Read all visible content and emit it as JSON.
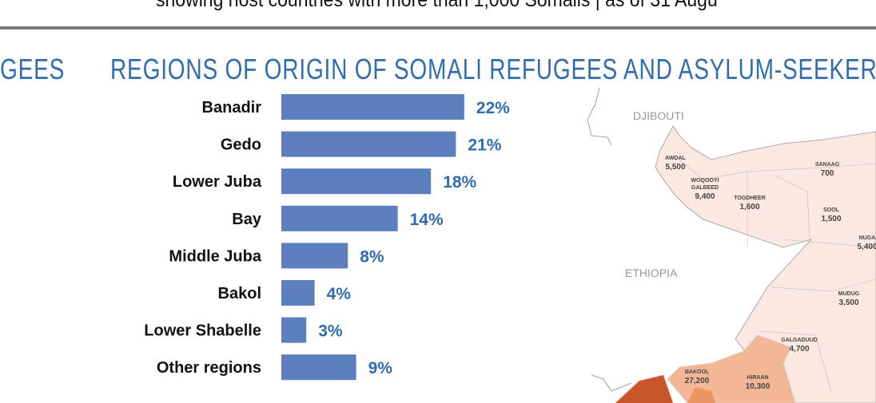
{
  "header": {
    "subtitle": "showing host countries with more than 1,000 Somalis | as of 31 Augu",
    "left_title_fragment": "GEES",
    "title": "REGIONS OF ORIGIN OF SOMALI REFUGEES AND ASYLUM-SEEKERS"
  },
  "chart_data": {
    "type": "bar",
    "orientation": "horizontal",
    "title": "REGIONS OF ORIGIN OF SOMALI REFUGEES AND ASYLUM-SEEKERS",
    "categories": [
      "Banadir",
      "Gedo",
      "Lower Juba",
      "Bay",
      "Middle Juba",
      "Bakol",
      "Lower Shabelle",
      "Other regions"
    ],
    "values": [
      22,
      21,
      18,
      14,
      8,
      4,
      3,
      9
    ],
    "labels": [
      "22%",
      "21%",
      "18%",
      "14%",
      "8%",
      "4%",
      "3%",
      "9%"
    ],
    "unit": "%",
    "bar_color": "#5b7fbd",
    "label_color": "#2f6db0"
  },
  "map": {
    "countries": [
      "DJIBOUTI",
      "ETHIOPIA"
    ],
    "regions": [
      {
        "name": "AWDAL",
        "value": "5,500"
      },
      {
        "name": "WOQOOYI",
        "name2": "GALBEED",
        "value": "9,400"
      },
      {
        "name": "TOGDHEER",
        "value": "1,600"
      },
      {
        "name": "SANAAG",
        "value": "700"
      },
      {
        "name": "SOOL",
        "value": "1,500"
      },
      {
        "name": "NUGA",
        "value": "5,400"
      },
      {
        "name": "MUDUG",
        "value": "3,500"
      },
      {
        "name": "GALGADUUD",
        "value": "4,700"
      },
      {
        "name": "BAKOOL",
        "value": "27,200"
      },
      {
        "name": "HIRAAN",
        "value": "10,300"
      }
    ]
  }
}
